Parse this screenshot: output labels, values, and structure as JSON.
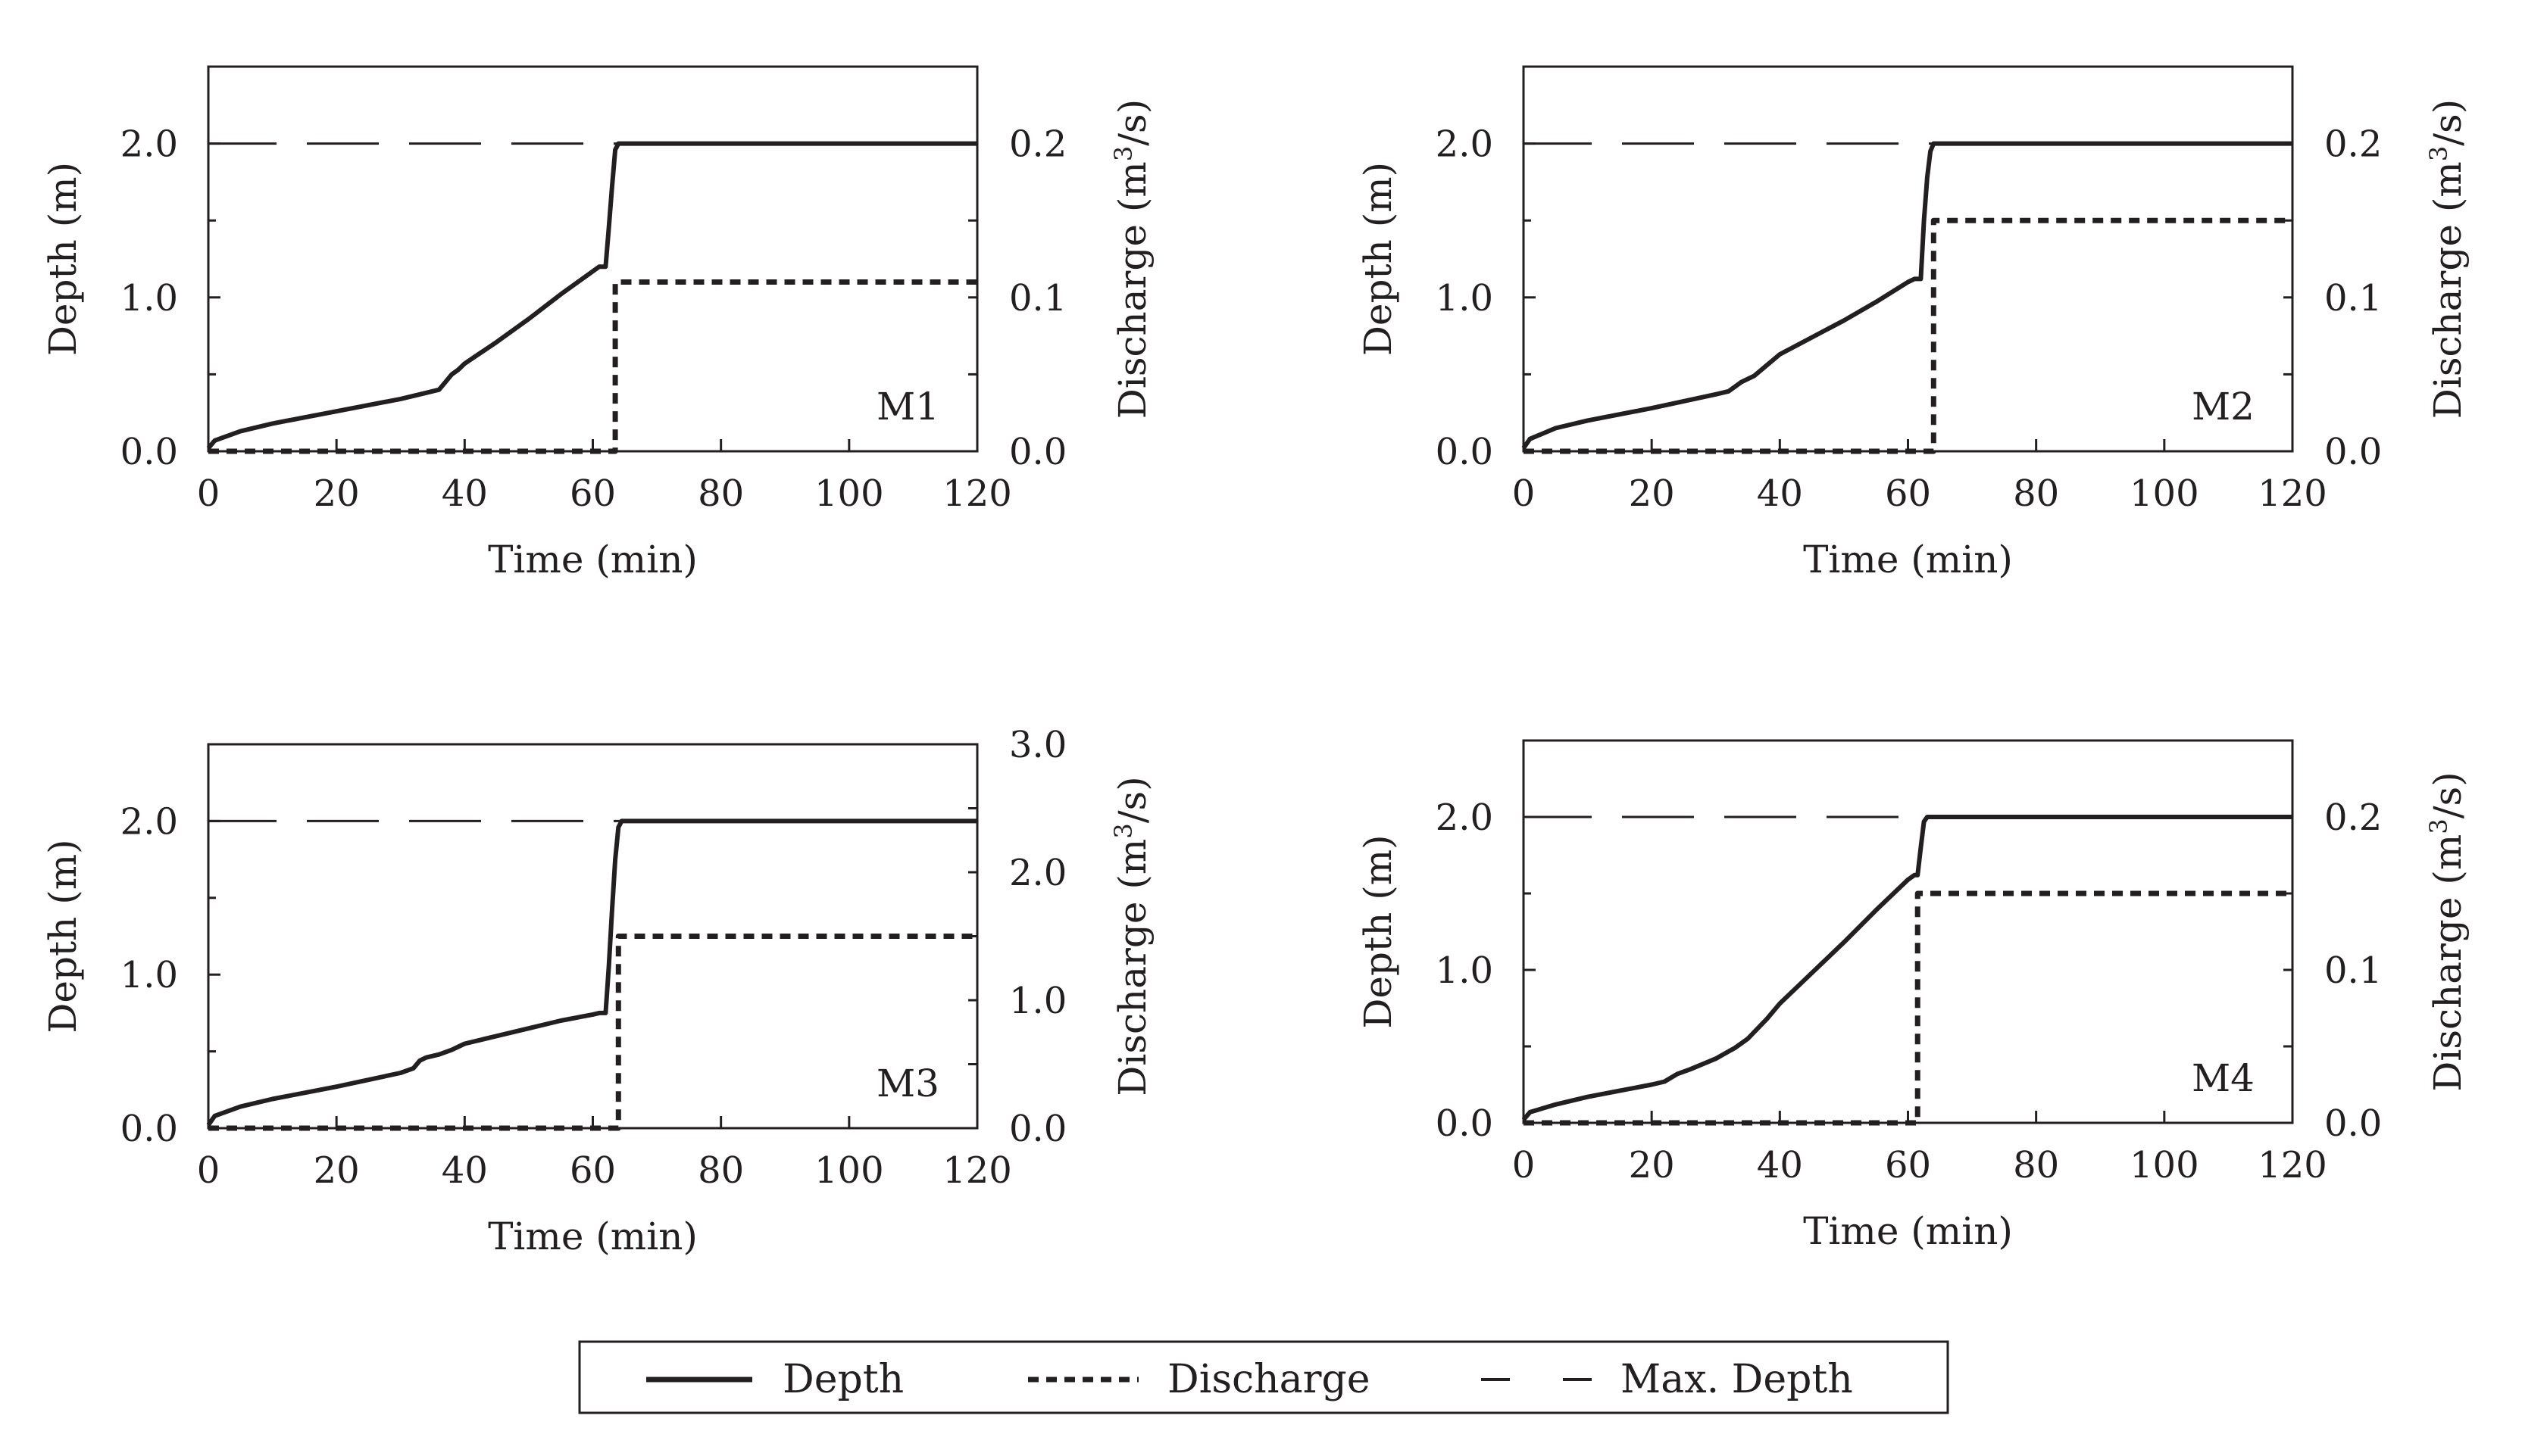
{
  "colors": {
    "ink": "#231f20",
    "background": "#ffffff"
  },
  "legend": {
    "items": [
      {
        "label": "Depth",
        "style": "solid"
      },
      {
        "label": "Discharge",
        "style": "dotted"
      },
      {
        "label": "Max. Depth",
        "style": "dashed"
      }
    ]
  },
  "chart_data": [
    {
      "type": "line",
      "panel_label": "M1",
      "xlabel": "Time (min)",
      "ylabel": "Depth (m)",
      "y2label_prefix": "Discharge (m",
      "y2label_sup": "3",
      "y2label_suffix": "/s)",
      "xlim": [
        0,
        120
      ],
      "ylim": [
        0,
        2.5
      ],
      "y2lim": [
        0,
        0.25
      ],
      "xticks": [
        0,
        20,
        40,
        60,
        80,
        100,
        120
      ],
      "xtick_labels": [
        "0",
        "20",
        "40",
        "60",
        "80",
        "100",
        "120"
      ],
      "yticks": [
        0,
        1,
        2
      ],
      "ytick_labels": [
        "0.0",
        "1.0",
        "2.0"
      ],
      "y2ticks": [
        0,
        0.1,
        0.2
      ],
      "y2tick_labels": [
        "0.0",
        "0.1",
        "0.2"
      ],
      "max_depth": 2.0,
      "series": [
        {
          "name": "Depth",
          "axis": "left",
          "style": "solid",
          "x": [
            0,
            1,
            5,
            10,
            20,
            30,
            34,
            36,
            37,
            38,
            39,
            40,
            45,
            50,
            55,
            60,
            61,
            62,
            62.5,
            63,
            63.5,
            64,
            120
          ],
          "y": [
            0.02,
            0.07,
            0.13,
            0.18,
            0.26,
            0.34,
            0.38,
            0.4,
            0.45,
            0.5,
            0.53,
            0.57,
            0.71,
            0.86,
            1.02,
            1.17,
            1.2,
            1.2,
            1.45,
            1.72,
            1.96,
            2.0,
            2.0
          ]
        },
        {
          "name": "Discharge",
          "axis": "right",
          "style": "dotted",
          "x": [
            0,
            63.5,
            63.5,
            120
          ],
          "y": [
            0,
            0,
            0.11,
            0.11
          ]
        }
      ]
    },
    {
      "type": "line",
      "panel_label": "M2",
      "xlabel": "Time (min)",
      "ylabel": "Depth (m)",
      "y2label_prefix": "Discharge (m",
      "y2label_sup": "3",
      "y2label_suffix": "/s)",
      "xlim": [
        0,
        120
      ],
      "ylim": [
        0,
        2.5
      ],
      "y2lim": [
        0,
        0.25
      ],
      "xticks": [
        0,
        20,
        40,
        60,
        80,
        100,
        120
      ],
      "xtick_labels": [
        "0",
        "20",
        "40",
        "60",
        "80",
        "100",
        "120"
      ],
      "yticks": [
        0,
        1,
        2
      ],
      "ytick_labels": [
        "0.0",
        "1.0",
        "2.0"
      ],
      "y2ticks": [
        0,
        0.1,
        0.2
      ],
      "y2tick_labels": [
        "0.0",
        "0.1",
        "0.2"
      ],
      "max_depth": 2.0,
      "series": [
        {
          "name": "Depth",
          "axis": "left",
          "style": "solid",
          "x": [
            0,
            1,
            5,
            10,
            20,
            30,
            32,
            34,
            36,
            38,
            40,
            45,
            50,
            55,
            60,
            61,
            62,
            62.5,
            63,
            63.5,
            64,
            120
          ],
          "y": [
            0.02,
            0.08,
            0.15,
            0.2,
            0.28,
            0.37,
            0.39,
            0.45,
            0.49,
            0.56,
            0.63,
            0.74,
            0.85,
            0.97,
            1.1,
            1.12,
            1.12,
            1.5,
            1.78,
            1.95,
            2.0,
            2.0
          ]
        },
        {
          "name": "Discharge",
          "axis": "right",
          "style": "dotted",
          "x": [
            0,
            64,
            64,
            120
          ],
          "y": [
            0,
            0,
            0.15,
            0.15
          ]
        }
      ]
    },
    {
      "type": "line",
      "panel_label": "M3",
      "xlabel": "Time (min)",
      "ylabel": "Depth (m)",
      "y2label_prefix": "Discharge (m",
      "y2label_sup": "3",
      "y2label_suffix": "/s)",
      "xlim": [
        0,
        120
      ],
      "ylim": [
        0,
        2.5
      ],
      "y2lim": [
        0,
        3.0
      ],
      "xticks": [
        0,
        20,
        40,
        60,
        80,
        100,
        120
      ],
      "xtick_labels": [
        "0",
        "20",
        "40",
        "60",
        "80",
        "100",
        "120"
      ],
      "yticks": [
        0,
        1,
        2
      ],
      "ytick_labels": [
        "0.0",
        "1.0",
        "2.0"
      ],
      "y2ticks": [
        0,
        1.0,
        2.0,
        3.0
      ],
      "y2tick_labels": [
        "0.0",
        "1.0",
        "2.0",
        "3.0"
      ],
      "max_depth": 2.0,
      "series": [
        {
          "name": "Depth",
          "axis": "left",
          "style": "solid",
          "x": [
            0,
            1,
            5,
            10,
            20,
            30,
            32,
            33,
            34,
            36,
            38,
            39,
            40,
            45,
            50,
            55,
            60,
            61,
            62,
            62.5,
            63,
            63.5,
            64,
            64.5,
            120
          ],
          "y": [
            0.02,
            0.08,
            0.14,
            0.19,
            0.27,
            0.36,
            0.39,
            0.44,
            0.46,
            0.48,
            0.51,
            0.53,
            0.55,
            0.6,
            0.65,
            0.7,
            0.74,
            0.75,
            0.75,
            1.05,
            1.42,
            1.75,
            1.96,
            2.0,
            2.0
          ]
        },
        {
          "name": "Discharge",
          "axis": "right",
          "style": "dotted",
          "x": [
            0,
            64,
            64,
            120
          ],
          "y": [
            0,
            0,
            1.5,
            1.5
          ]
        }
      ]
    },
    {
      "type": "line",
      "panel_label": "M4",
      "xlabel": "Time (min)",
      "ylabel": "Depth (m)",
      "y2label_prefix": "Discharge (m",
      "y2label_sup": "3",
      "y2label_suffix": "/s)",
      "xlim": [
        0,
        120
      ],
      "ylim": [
        0,
        2.5
      ],
      "y2lim": [
        0,
        0.25
      ],
      "xticks": [
        0,
        20,
        40,
        60,
        80,
        100,
        120
      ],
      "xtick_labels": [
        "0",
        "20",
        "40",
        "60",
        "80",
        "100",
        "120"
      ],
      "yticks": [
        0,
        1,
        2
      ],
      "ytick_labels": [
        "0.0",
        "1.0",
        "2.0"
      ],
      "y2ticks": [
        0,
        0.1,
        0.2
      ],
      "y2tick_labels": [
        "0.0",
        "0.1",
        "0.2"
      ],
      "max_depth": 2.0,
      "series": [
        {
          "name": "Depth",
          "axis": "left",
          "style": "solid",
          "x": [
            0,
            1,
            5,
            10,
            15,
            20,
            22,
            24,
            26,
            30,
            33,
            35,
            38,
            40,
            45,
            50,
            55,
            60,
            61,
            61.5,
            62,
            62.5,
            63,
            120
          ],
          "y": [
            0.02,
            0.07,
            0.12,
            0.17,
            0.21,
            0.25,
            0.27,
            0.32,
            0.35,
            0.42,
            0.49,
            0.55,
            0.68,
            0.78,
            0.98,
            1.18,
            1.39,
            1.59,
            1.62,
            1.62,
            1.8,
            1.97,
            2.0,
            2.0
          ]
        },
        {
          "name": "Discharge",
          "axis": "right",
          "style": "dotted",
          "x": [
            0,
            61.5,
            61.5,
            120
          ],
          "y": [
            0,
            0,
            0.15,
            0.15
          ]
        }
      ]
    }
  ]
}
